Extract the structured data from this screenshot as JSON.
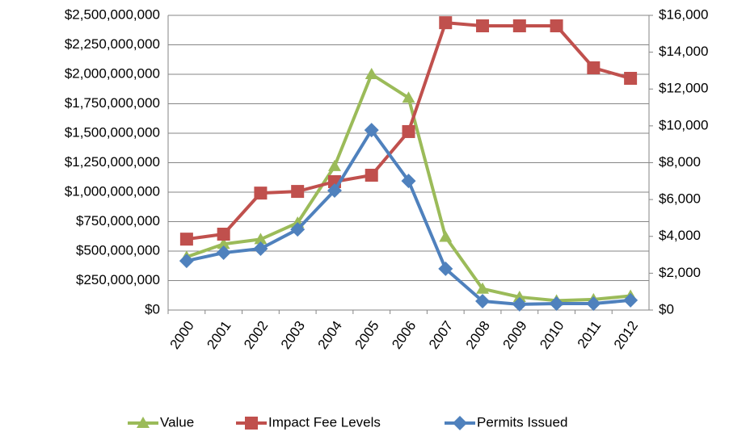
{
  "chart_data": {
    "type": "line",
    "categories": [
      "2000",
      "2001",
      "2002",
      "2003",
      "2004",
      "2005",
      "2006",
      "2007",
      "2008",
      "2009",
      "2010",
      "2011",
      "2012"
    ],
    "series": [
      {
        "name": "Value",
        "color": "#9bbb59",
        "marker": "triangle",
        "axis": "y",
        "values": [
          450000000,
          560000000,
          600000000,
          740000000,
          1220000000,
          2000000000,
          1800000000,
          620000000,
          180000000,
          110000000,
          80000000,
          90000000,
          120000000
        ]
      },
      {
        "name": "Impact Fee Levels",
        "color": "#c0504d",
        "marker": "square",
        "axis": "y2",
        "values": [
          3850,
          4120,
          6350,
          6440,
          6970,
          7320,
          9690,
          15600,
          15430,
          15430,
          15430,
          13150,
          12580
        ]
      },
      {
        "name": "Permits Issued",
        "color": "#4f81bd",
        "marker": "diamond",
        "axis": "y2",
        "values": [
          2670,
          3110,
          3330,
          4380,
          6490,
          9770,
          7010,
          2240,
          480,
          310,
          350,
          350,
          530
        ]
      }
    ],
    "ylim": [
      0,
      2500000000
    ],
    "yticks": [
      {
        "value": 0,
        "label": "$0"
      },
      {
        "value": 250000000,
        "label": "$250,000,000"
      },
      {
        "value": 500000000,
        "label": "$500,000,000"
      },
      {
        "value": 750000000,
        "label": "$750,000,000"
      },
      {
        "value": 1000000000,
        "label": "$1,000,000,000"
      },
      {
        "value": 1250000000,
        "label": "$1,250,000,000"
      },
      {
        "value": 1500000000,
        "label": "$1,500,000,000"
      },
      {
        "value": 1750000000,
        "label": "$1,750,000,000"
      },
      {
        "value": 2000000000,
        "label": "$2,000,000,000"
      },
      {
        "value": 2250000000,
        "label": "$2,250,000,000"
      },
      {
        "value": 2500000000,
        "label": "$2,500,000,000"
      }
    ],
    "y2lim": [
      0,
      16000
    ],
    "y2ticks": [
      {
        "value": 0,
        "label": "$0"
      },
      {
        "value": 2000,
        "label": "$2,000"
      },
      {
        "value": 4000,
        "label": "$4,000"
      },
      {
        "value": 6000,
        "label": "$6,000"
      },
      {
        "value": 8000,
        "label": "$8,000"
      },
      {
        "value": 10000,
        "label": "$10,000"
      },
      {
        "value": 12000,
        "label": "$12,000"
      },
      {
        "value": 14000,
        "label": "$14,000"
      },
      {
        "value": 16000,
        "label": "$16,000"
      }
    ],
    "grid": true,
    "legend": "bottom"
  }
}
